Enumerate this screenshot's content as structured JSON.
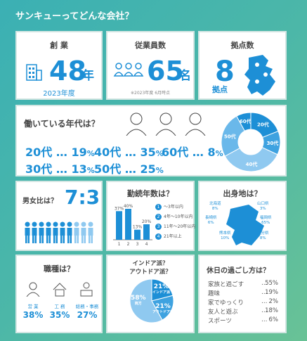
{
  "title": "サンキューってどんな会社？",
  "colors": {
    "accent": "#1d8fd6",
    "light": "#8fc9f0",
    "mid": "#4aa8e4",
    "bg_from": "#3bb0b4",
    "bg_to": "#69c296"
  },
  "founding": {
    "label": "創 業",
    "value": "48",
    "unit": "年",
    "sub": "2023年度",
    "icon": "building-icon"
  },
  "employees": {
    "label": "従業員数",
    "value": "65",
    "unit": "名",
    "note": "※2023年度 6月時点",
    "icon": "people-icon"
  },
  "bases": {
    "label": "拠点数",
    "value": "8",
    "unit": "拠点",
    "icon": "map-pin-icon"
  },
  "ages": {
    "label": "働いている年代は？",
    "items": [
      {
        "age": "20代",
        "pct": "19",
        "unit": "%"
      },
      {
        "age": "40代",
        "pct": "35",
        "unit": "%"
      },
      {
        "age": "60代",
        "pct": "8",
        "unit": "%"
      },
      {
        "age": "30代",
        "pct": "13",
        "unit": "%"
      },
      {
        "age": "50代",
        "pct": "25",
        "unit": "%"
      }
    ],
    "sep": "…",
    "donut_labels": [
      "20代",
      "30代",
      "40代",
      "50代",
      "60代"
    ],
    "donut_values": [
      19,
      13,
      35,
      25,
      8
    ]
  },
  "gender": {
    "label": "男女比は？",
    "ratio": "7:3",
    "male": 7,
    "female": 3
  },
  "tenure": {
    "label": "勤続年数は？",
    "bars": [
      {
        "x": "1",
        "value": 37,
        "label": "37%"
      },
      {
        "x": "2",
        "value": 40,
        "label": "40%"
      },
      {
        "x": "3",
        "value": 13,
        "label": "13%"
      },
      {
        "x": "4",
        "value": 20,
        "label": "20%"
      }
    ],
    "legend": [
      {
        "n": "1",
        "text": "〜3年以内"
      },
      {
        "n": "2",
        "text": "4年〜10年以内"
      },
      {
        "n": "3",
        "text": "11年〜20年以内"
      },
      {
        "n": "4",
        "text": "21年以上"
      }
    ]
  },
  "origin": {
    "label": "出身地は？",
    "regions": [
      {
        "name": "北海道",
        "pct": "8%"
      },
      {
        "name": "山口県",
        "pct": "3%"
      },
      {
        "name": "長崎県",
        "pct": "6%"
      },
      {
        "name": "福岡県",
        "pct": "65%"
      },
      {
        "name": "熊本県",
        "pct": "10%"
      },
      {
        "name": "大分県",
        "pct": "8%"
      }
    ]
  },
  "jobs": {
    "label": "職種は？",
    "items": [
      {
        "name": "営 業",
        "pct": "38%"
      },
      {
        "name": "工 務",
        "pct": "35%"
      },
      {
        "name": "総務・事務",
        "pct": "27%"
      }
    ]
  },
  "indoor": {
    "label1": "インドア派？",
    "label2": "アウトドア派？",
    "slices": [
      {
        "name": "両方",
        "value": 58,
        "label": "58%"
      },
      {
        "name": "インドア派",
        "value": 21,
        "label": "21%"
      },
      {
        "name": "アウトドア派",
        "value": 21,
        "label": "21%"
      }
    ]
  },
  "holiday": {
    "label": "休日の過ごし方は？",
    "items": [
      {
        "name": "家族と過ごす",
        "pct": "55%"
      },
      {
        "name": "趣味",
        "pct": "19%"
      },
      {
        "name": "家でゆっくり",
        "pct": "2%"
      },
      {
        "name": "友人と遊ぶ",
        "pct": "18%"
      },
      {
        "name": "スポーツ",
        "pct": "6%"
      }
    ],
    "sep": "…"
  }
}
